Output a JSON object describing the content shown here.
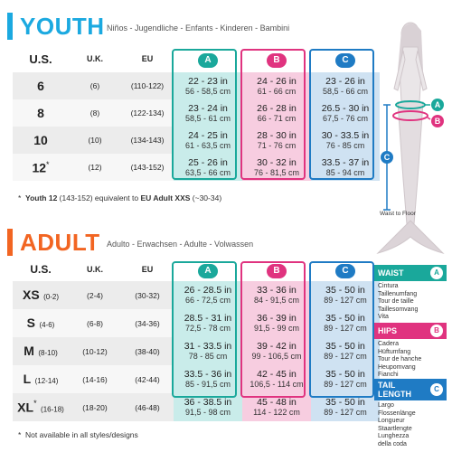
{
  "youth": {
    "title": "YOUTH",
    "subtitle": "Niños - Jugendliche - Enfants - Kinderen - Bambini",
    "headers": {
      "us": "U.S.",
      "uk": "U.K.",
      "eu": "EU",
      "a": "A",
      "b": "B",
      "c": "C"
    },
    "rows": [
      {
        "us": "6",
        "uk": "(6)",
        "eu": "(110-122)",
        "a_in": "22 - 23 in",
        "a_cm": "56 - 58,5 cm",
        "b_in": "24 - 26 in",
        "b_cm": "61 - 66 cm",
        "c_in": "23 - 26 in",
        "c_cm": "58,5 - 66 cm"
      },
      {
        "us": "8",
        "uk": "(8)",
        "eu": "(122-134)",
        "a_in": "23 - 24 in",
        "a_cm": "58,5 - 61 cm",
        "b_in": "26 - 28 in",
        "b_cm": "66 - 71 cm",
        "c_in": "26.5 - 30 in",
        "c_cm": "67,5 - 76 cm"
      },
      {
        "us": "10",
        "uk": "(10)",
        "eu": "(134-143)",
        "a_in": "24 - 25 in",
        "a_cm": "61 - 63,5 cm",
        "b_in": "28 - 30 in",
        "b_cm": "71 - 76 cm",
        "c_in": "30 - 33.5 in",
        "c_cm": "76 - 85 cm"
      },
      {
        "us": "12",
        "us_mark": "*",
        "uk": "(12)",
        "eu": "(143-152)",
        "a_in": "25 - 26 in",
        "a_cm": "63,5 - 66 cm",
        "b_in": "30 - 32 in",
        "b_cm": "76 - 81,5 cm",
        "c_in": "33.5 - 37 in",
        "c_cm": "85 - 94 cm"
      }
    ],
    "footnote_star": "*",
    "footnote_bold": "Youth 12",
    "footnote_mid": " (143-152) equivalent to ",
    "footnote_bold2": "EU Adult XXS",
    "footnote_end": " (~30-34)"
  },
  "adult": {
    "title": "ADULT",
    "subtitle": "Adulto - Erwachsen - Adulte - Volwassen",
    "headers": {
      "us": "U.S.",
      "uk": "U.K.",
      "eu": "EU",
      "a": "A",
      "b": "B",
      "c": "C"
    },
    "rows": [
      {
        "us": "XS",
        "us_sub": "(0-2)",
        "uk": "(2-4)",
        "eu": "(30-32)",
        "a_in": "26 - 28.5 in",
        "a_cm": "66 - 72,5 cm",
        "b_in": "33 - 36 in",
        "b_cm": "84 - 91,5 cm",
        "c_in": "35 - 50 in",
        "c_cm": "89 - 127 cm"
      },
      {
        "us": "S",
        "us_sub": "(4-6)",
        "uk": "(6-8)",
        "eu": "(34-36)",
        "a_in": "28.5 - 31 in",
        "a_cm": "72,5 - 78 cm",
        "b_in": "36 - 39 in",
        "b_cm": "91,5 - 99 cm",
        "c_in": "35 - 50 in",
        "c_cm": "89 - 127 cm"
      },
      {
        "us": "M",
        "us_sub": "(8-10)",
        "uk": "(10-12)",
        "eu": "(38-40)",
        "a_in": "31 - 33.5 in",
        "a_cm": "78 - 85 cm",
        "b_in": "39 - 42 in",
        "b_cm": "99 - 106,5 cm",
        "c_in": "35 - 50 in",
        "c_cm": "89 - 127 cm"
      },
      {
        "us": "L",
        "us_sub": "(12-14)",
        "uk": "(14-16)",
        "eu": "(42-44)",
        "a_in": "33.5 - 36 in",
        "a_cm": "85 - 91,5 cm",
        "b_in": "42 - 45 in",
        "b_cm": "106,5 - 114 cm",
        "c_in": "35 - 50 in",
        "c_cm": "89 - 127 cm"
      },
      {
        "us": "XL",
        "us_mark": "*",
        "us_sub": "(16-18)",
        "uk": "(18-20)",
        "eu": "(46-48)",
        "a_in": "36 - 38.5 in",
        "a_cm": "91,5 - 98 cm",
        "b_in": "45 - 48 in",
        "b_cm": "114 - 122 cm",
        "c_in": "35 - 50 in",
        "c_cm": "89 - 127 cm"
      }
    ],
    "footnote_star": "*",
    "footnote": "Not available in all styles/designs"
  },
  "figure": {
    "label_a": "A",
    "label_b": "B",
    "label_c": "C",
    "waist_to_floor": "Waist to Floor"
  },
  "legend": {
    "waist": {
      "title": "WAIST",
      "badge": "A",
      "lines": [
        "Cintura",
        "Taillenumfang",
        "Tour de taille",
        "Taillesomvang",
        "Vita"
      ]
    },
    "hips": {
      "title": "HIPS",
      "badge": "B",
      "lines": [
        "Cadera",
        "Hüftumfang",
        "Tour de hanche",
        "Heupomvang",
        "Fianchi"
      ]
    },
    "tail": {
      "title": "TAIL LENGTH",
      "badge": "C",
      "lines": [
        "Largo",
        "Flossenlänge",
        "Longueur",
        "Staartlengte",
        "Lunghezza",
        "della coda"
      ]
    }
  },
  "colors": {
    "youth_accent": "#1ba9e0",
    "adult_accent": "#f26522",
    "a": "#1aa89b",
    "b": "#e0337f",
    "c": "#1f7bc4"
  }
}
